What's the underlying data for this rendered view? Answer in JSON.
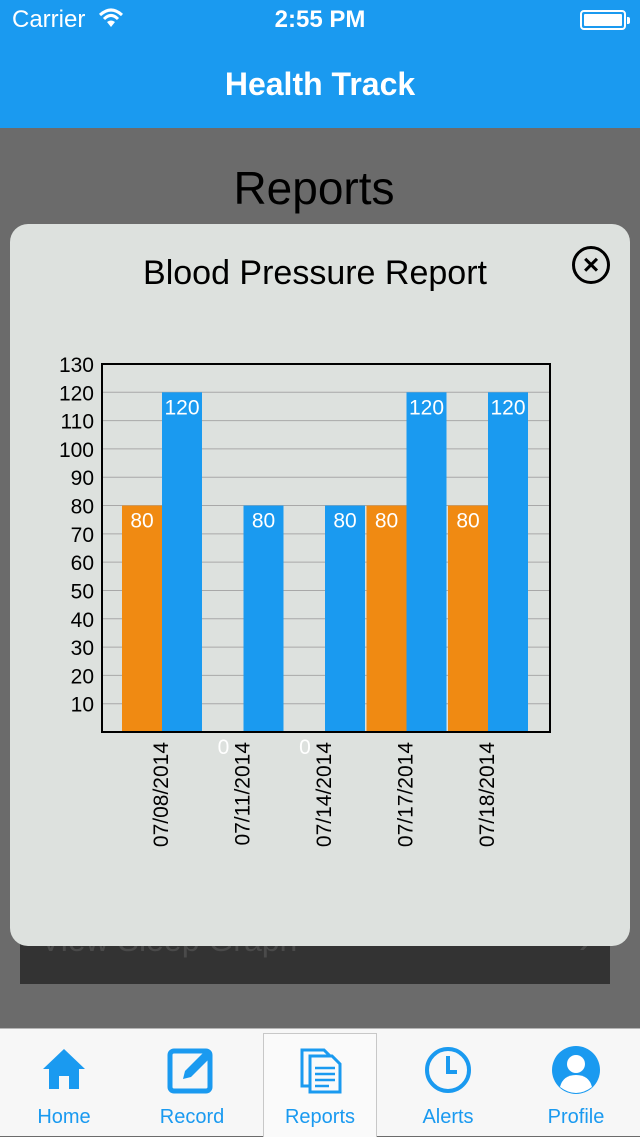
{
  "status_bar": {
    "carrier": "Carrier",
    "time": "2:55 PM"
  },
  "nav": {
    "title": "Health Track"
  },
  "background": {
    "title": "Reports",
    "row_label": "View Sleep Graph"
  },
  "modal": {
    "title": "Blood Pressure Report",
    "close_icon": "close-circle-icon"
  },
  "chart_data": {
    "type": "bar",
    "categories": [
      "07/08/2014",
      "07/11/2014",
      "07/14/2014",
      "07/17/2014",
      "07/18/2014"
    ],
    "series": [
      {
        "values": [
          80,
          0,
          0,
          80,
          80
        ],
        "color": "#f08a12"
      },
      {
        "values": [
          120,
          80,
          80,
          120,
          120
        ],
        "color": "#1a9af0"
      }
    ],
    "yticks": [
      10,
      20,
      30,
      40,
      50,
      60,
      70,
      80,
      90,
      100,
      110,
      120,
      130
    ],
    "ylim": [
      0,
      130
    ],
    "grid": true,
    "title": "Blood Pressure Report",
    "xlabel": "",
    "ylabel": ""
  },
  "tabbar": {
    "accent": "#1a9af0",
    "tabs": [
      {
        "label": "Home",
        "icon": "home-icon"
      },
      {
        "label": "Record",
        "icon": "edit-icon"
      },
      {
        "label": "Reports",
        "icon": "documents-icon",
        "active": true
      },
      {
        "label": "Alerts",
        "icon": "clock-icon"
      },
      {
        "label": "Profile",
        "icon": "person-icon"
      }
    ]
  }
}
